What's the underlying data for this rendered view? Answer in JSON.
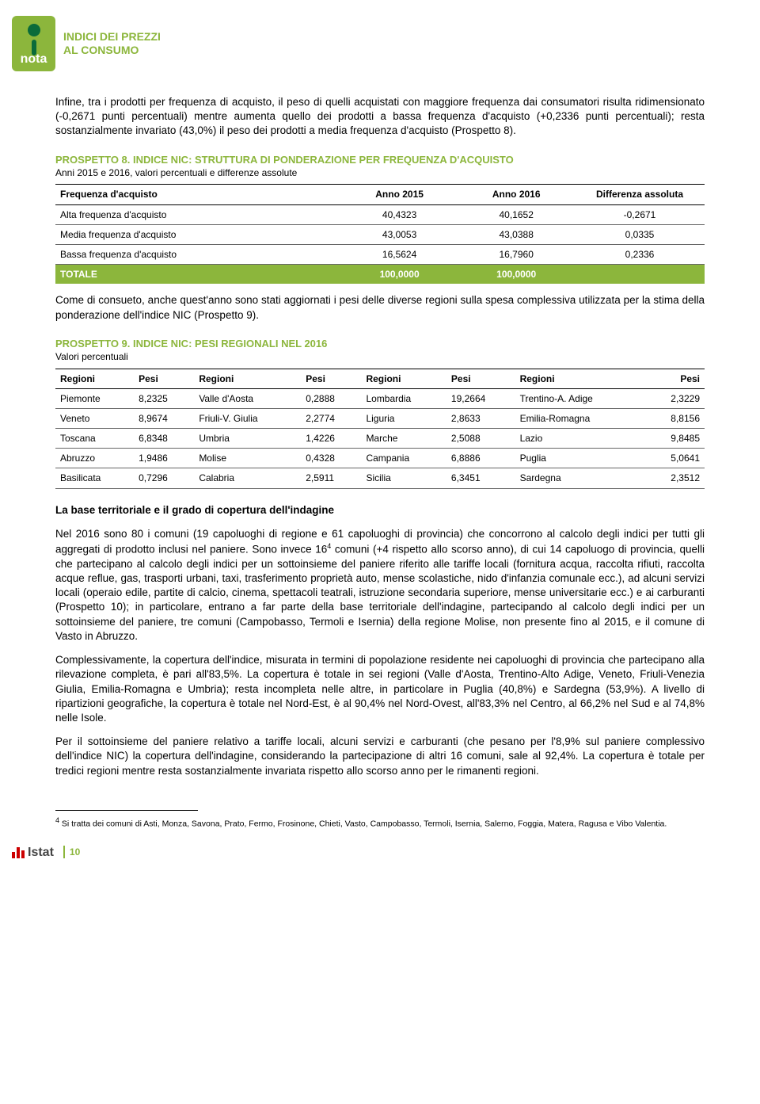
{
  "header": {
    "logo_text": "nota",
    "title_line1": "INDICI DEI PREZZI",
    "title_line2": "AL CONSUMO"
  },
  "paragraphs": {
    "p1": "Infine, tra i prodotti per frequenza di acquisto, il peso di quelli acquistati con maggiore frequenza dai consumatori risulta ridimensionato (-0,2671 punti percentuali) mentre aumenta quello dei prodotti a bassa frequenza d'acquisto (+0,2336 punti percentuali); resta sostanzialmente invariato (43,0%) il peso dei prodotti a media frequenza d'acquisto (Prospetto 8).",
    "p2": "Come di consueto, anche quest'anno sono stati aggiornati i pesi delle diverse regioni sulla spesa complessiva utilizzata per la stima della ponderazione dell'indice NIC (Prospetto 9).",
    "section_title": "La base territoriale e il grado di copertura dell'indagine",
    "p3a": "Nel 2016 sono 80 i comuni (19 capoluoghi di regione e 61 capoluoghi di provincia) che concorrono al calcolo degli indici per tutti gli aggregati di prodotto inclusi nel paniere. Sono invece 16",
    "p3b": " comuni (+4 rispetto allo scorso anno), di cui 14 capoluogo di provincia, quelli che partecipano al calcolo degli indici per un sottoinsieme del paniere riferito alle tariffe locali (fornitura acqua, raccolta rifiuti, raccolta acque reflue, gas, trasporti urbani, taxi, trasferimento proprietà auto, mense scolastiche, nido d'infanzia comunale ecc.), ad alcuni servizi locali (operaio edile, partite di calcio, cinema, spettacoli teatrali, istruzione secondaria superiore, mense universitarie ecc.) e ai carburanti (Prospetto 10); in particolare, entrano a far parte della base territoriale dell'indagine, partecipando al calcolo degli indici per un sottoinsieme del paniere, tre comuni (Campobasso, Termoli e Isernia) della regione Molise, non presente fino al 2015, e il comune di Vasto in Abruzzo.",
    "p4": "Complessivamente, la copertura dell'indice, misurata in termini di popolazione residente nei capoluoghi di provincia che partecipano alla rilevazione completa, è pari all'83,5%. La copertura è totale in sei regioni (Valle d'Aosta, Trentino-Alto Adige, Veneto, Friuli-Venezia Giulia, Emilia-Romagna e Umbria); resta incompleta nelle altre, in particolare in Puglia (40,8%) e Sardegna (53,9%). A livello di ripartizioni geografiche, la copertura è totale nel Nord-Est, è al 90,4% nel Nord-Ovest, all'83,3% nel Centro, al 66,2% nel Sud e al 74,8% nelle Isole.",
    "p5": "Per il sottoinsieme del paniere relativo a tariffe locali, alcuni servizi e carburanti (che pesano per l'8,9% sul paniere complessivo dell'indice NIC) la copertura dell'indagine, considerando la partecipazione di altri 16 comuni, sale al 92,4%. La copertura è totale per tredici regioni mentre resta sostanzialmente invariata rispetto allo scorso anno per le rimanenti regioni."
  },
  "prospetto8": {
    "title": "PROSPETTO 8. INDICE NIC: STRUTTURA DI PONDERAZIONE PER FREQUENZA D'ACQUISTO",
    "subtitle": "Anni 2015 e 2016, valori percentuali e differenze assolute",
    "columns": [
      "Frequenza d'acquisto",
      "Anno 2015",
      "Anno 2016",
      "Differenza assoluta"
    ],
    "rows": [
      {
        "label": "Alta frequenza d'acquisto",
        "v2015": "40,4323",
        "v2016": "40,1652",
        "diff": "-0,2671"
      },
      {
        "label": "Media frequenza d'acquisto",
        "v2015": "43,0053",
        "v2016": "43,0388",
        "diff": "0,0335"
      },
      {
        "label": "Bassa frequenza d'acquisto",
        "v2015": "16,5624",
        "v2016": "16,7960",
        "diff": "0,2336"
      }
    ],
    "totale": {
      "label": "TOTALE",
      "v2015": "100,0000",
      "v2016": "100,0000",
      "diff": ""
    },
    "colors": {
      "accent": "#8cb63c",
      "text": "#000000",
      "row_border": "#666666"
    }
  },
  "prospetto9": {
    "title": "PROSPETTO 9. INDICE NIC: PESI REGIONALI NEL 2016",
    "subtitle": "Valori percentuali",
    "header_labels": {
      "regioni": "Regioni",
      "pesi": "Pesi"
    },
    "rows": [
      [
        {
          "r": "Piemonte",
          "p": "8,2325"
        },
        {
          "r": "Valle d'Aosta",
          "p": "0,2888"
        },
        {
          "r": "Lombardia",
          "p": "19,2664"
        },
        {
          "r": "Trentino-A. Adige",
          "p": "2,3229"
        }
      ],
      [
        {
          "r": "Veneto",
          "p": "8,9674"
        },
        {
          "r": "Friuli-V. Giulia",
          "p": "2,2774"
        },
        {
          "r": "Liguria",
          "p": "2,8633"
        },
        {
          "r": "Emilia-Romagna",
          "p": "8,8156"
        }
      ],
      [
        {
          "r": "Toscana",
          "p": "6,8348"
        },
        {
          "r": "Umbria",
          "p": "1,4226"
        },
        {
          "r": "Marche",
          "p": "2,5088"
        },
        {
          "r": "Lazio",
          "p": "9,8485"
        }
      ],
      [
        {
          "r": "Abruzzo",
          "p": "1,9486"
        },
        {
          "r": "Molise",
          "p": "0,4328"
        },
        {
          "r": "Campania",
          "p": "6,8886"
        },
        {
          "r": "Puglia",
          "p": "5,0641"
        }
      ],
      [
        {
          "r": "Basilicata",
          "p": "0,7296"
        },
        {
          "r": "Calabria",
          "p": "2,5911"
        },
        {
          "r": "Sicilia",
          "p": "6,3451"
        },
        {
          "r": "Sardegna",
          "p": "2,3512"
        }
      ]
    ],
    "colors": {
      "accent": "#8cb63c"
    }
  },
  "footnote": {
    "marker": "4",
    "text": " Si tratta dei comuni di Asti, Monza, Savona, Prato, Fermo, Frosinone, Chieti, Vasto, Campobasso, Termoli, Isernia, Salerno, Foggia, Matera, Ragusa e Vibo Valentia."
  },
  "footer": {
    "istat": "Istat",
    "page": "10"
  }
}
